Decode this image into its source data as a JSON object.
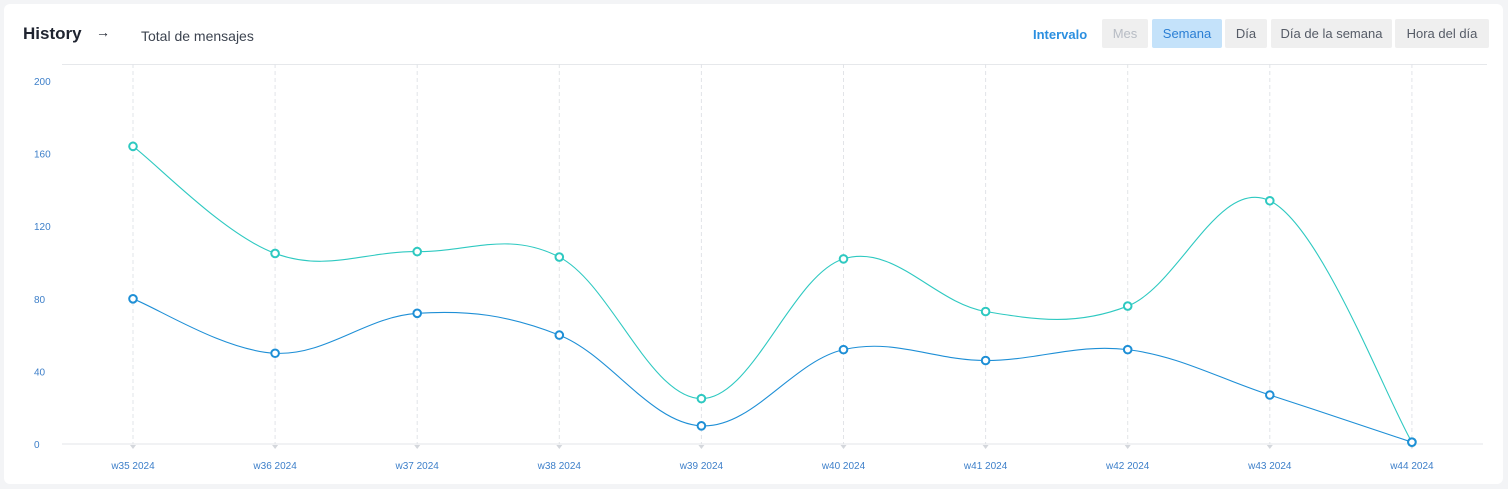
{
  "header": {
    "title": "History",
    "arrow_icon": "arrow-right-icon",
    "metric_label": "Total de mensajes",
    "interval_label": "Intervalo",
    "buttons": [
      {
        "label": "Mes",
        "state": "disabled"
      },
      {
        "label": "Semana",
        "state": "active"
      },
      {
        "label": "Día",
        "state": "normal"
      },
      {
        "label": "Día de la semana",
        "state": "normal"
      },
      {
        "label": "Hora del día",
        "state": "normal"
      }
    ]
  },
  "colors": {
    "series_teal": "#2ec9c1",
    "series_blue": "#1e8fd6",
    "tick_text": "#3d7fc9",
    "active_button_bg": "#c4e2fa",
    "active_button_text": "#2b7fd4"
  },
  "chart_data": {
    "type": "line",
    "smooth": true,
    "grid": "vertical dashed",
    "ylim": [
      0,
      200
    ],
    "yticks": [
      0,
      40,
      80,
      120,
      160,
      200
    ],
    "categories": [
      "w35 2024",
      "w36 2024",
      "w37 2024",
      "w38 2024",
      "w39 2024",
      "w40 2024",
      "w41 2024",
      "w42 2024",
      "w43 2024",
      "w44 2024"
    ],
    "series": [
      {
        "color_key": "series_teal",
        "values": [
          164,
          105,
          106,
          103,
          25,
          102,
          73,
          76,
          134,
          1
        ]
      },
      {
        "color_key": "series_blue",
        "values": [
          80,
          50,
          72,
          60,
          10,
          52,
          46,
          52,
          27,
          1
        ]
      }
    ]
  }
}
